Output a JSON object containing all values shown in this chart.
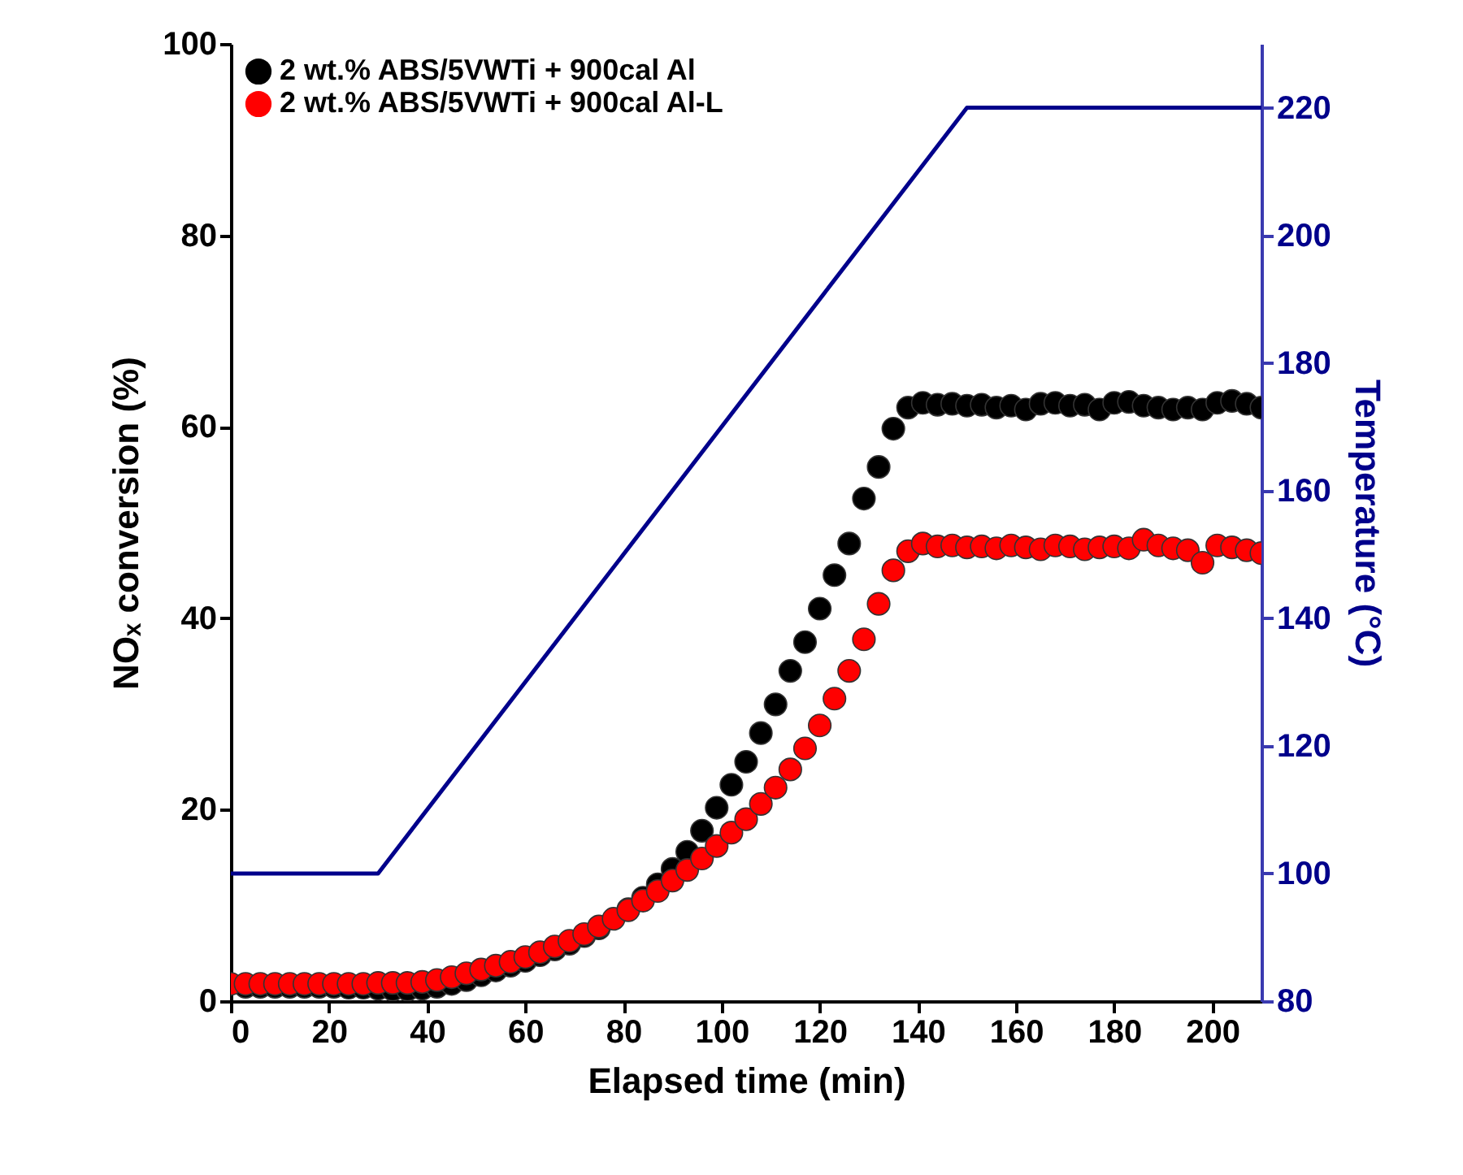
{
  "chart_data": {
    "type": "scatter",
    "xlabel": "Elapsed time (min)",
    "ylabel": "NOₓ conversion (%)",
    "y2label": "Temperature (°C)",
    "x": [
      0,
      3,
      6,
      9,
      12,
      15,
      18,
      21,
      24,
      27,
      30,
      33,
      36,
      39,
      42,
      45,
      48,
      51,
      54,
      57,
      60,
      63,
      66,
      69,
      72,
      75,
      78,
      81,
      84,
      87,
      90,
      93,
      96,
      99,
      102,
      105,
      108,
      111,
      114,
      117,
      120,
      123,
      126,
      129,
      132,
      135,
      138,
      141,
      144,
      147,
      150,
      153,
      156,
      159,
      162,
      165,
      168,
      171,
      174,
      177,
      180,
      183,
      186,
      189,
      192,
      195,
      198,
      201,
      204,
      207,
      210
    ],
    "series": [
      {
        "name": "2 wt.% ABS/5VWTi + 900cal Al",
        "color": "#000000",
        "values": [
          null,
          1.5,
          1.5,
          1.5,
          1.5,
          1.5,
          1.5,
          1.5,
          1.4,
          1.4,
          1.3,
          1.2,
          1.2,
          1.3,
          1.5,
          1.8,
          2.2,
          2.7,
          3.2,
          3.7,
          4.2,
          4.8,
          5.4,
          6.0,
          6.8,
          7.6,
          null,
          9.6,
          10.8,
          12.2,
          13.8,
          15.6,
          17.8,
          20.2,
          22.6,
          25.0,
          28.0,
          31.0,
          34.5,
          37.5,
          41,
          44.5,
          47.8,
          52.5,
          55.8,
          59.8,
          62,
          62.5,
          62.3,
          62.4,
          62.2,
          62.3,
          62,
          62.2,
          61.8,
          62.4,
          62.5,
          62.2,
          62.3,
          61.8,
          62.5,
          62.6,
          62.2,
          62,
          61.8,
          62,
          61.8,
          62.5,
          62.7,
          62.4,
          62
        ]
      },
      {
        "name": "2 wt.% ABS/5VWTi + 900cal Al-L",
        "color": "#ff0000",
        "values": [
          1.8,
          1.8,
          1.8,
          1.8,
          1.8,
          1.8,
          1.8,
          1.8,
          1.8,
          1.8,
          1.9,
          1.9,
          1.9,
          2.0,
          2.2,
          2.5,
          2.9,
          3.3,
          3.7,
          4.1,
          4.6,
          5.1,
          5.7,
          6.3,
          7.0,
          7.8,
          8.6,
          9.5,
          10.5,
          11.5,
          12.6,
          13.7,
          14.9,
          16.2,
          17.6,
          19.0,
          20.6,
          22.3,
          24.2,
          26.4,
          28.8,
          31.6,
          34.5,
          37.8,
          41.5,
          45,
          47,
          47.8,
          47.5,
          47.6,
          47.4,
          47.5,
          47.3,
          47.6,
          47.4,
          47.2,
          47.6,
          47.5,
          47.2,
          47.4,
          47.5,
          47.3,
          48.2,
          47.6,
          47.3,
          47.1,
          45.8,
          47.6,
          47.4,
          47.1,
          46.8
        ]
      },
      {
        "type": "line",
        "axis": "y2",
        "color": "#00008b",
        "marker": "none",
        "x": [
          0,
          30,
          150,
          210
        ],
        "values": [
          100,
          100,
          220,
          220
        ]
      }
    ],
    "xlim": [
      0,
      210
    ],
    "xticks": [
      0,
      20,
      40,
      60,
      80,
      100,
      120,
      140,
      160,
      180,
      200
    ],
    "ylim": [
      0,
      100
    ],
    "yticks": [
      0,
      20,
      40,
      60,
      80,
      100
    ],
    "y2lim": [
      80,
      230
    ],
    "y2ticks": [
      80,
      100,
      120,
      140,
      160,
      180,
      200,
      220
    ],
    "marker": "circle",
    "legend": "top left",
    "grid": false
  }
}
